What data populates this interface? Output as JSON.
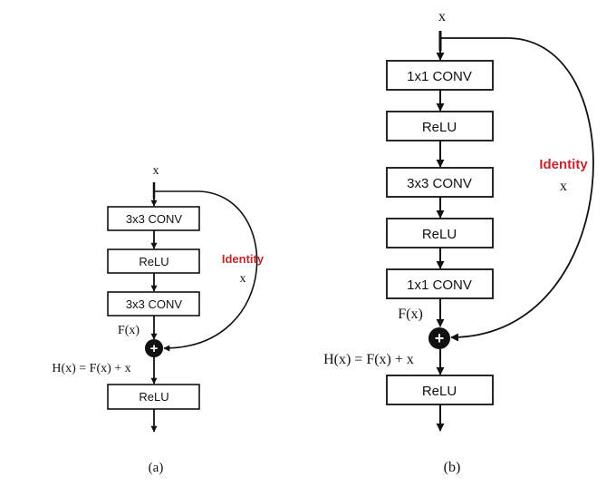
{
  "colors": {
    "line": "#111111",
    "identity": "#c0282d",
    "box_fill": "#ffffff"
  },
  "panel_a": {
    "input_label": "x",
    "layers": [
      "3x3 CONV",
      "ReLU",
      "3x3 CONV"
    ],
    "fx_label": "F(x)",
    "hx_label": "H(x) = F(x) + x",
    "identity_label": "Identity",
    "identity_x": "x",
    "post_layer": "ReLU",
    "plus_symbol": "+",
    "caption": "(a)"
  },
  "panel_b": {
    "input_label": "x",
    "layers": [
      "1x1 CONV",
      "ReLU",
      "3x3 CONV",
      "ReLU",
      "1x1 CONV"
    ],
    "fx_label": "F(x)",
    "hx_label": "H(x) = F(x) + x",
    "identity_label": "Identity",
    "identity_x": "x",
    "post_layer": "ReLU",
    "plus_symbol": "+",
    "caption": "(b)"
  }
}
